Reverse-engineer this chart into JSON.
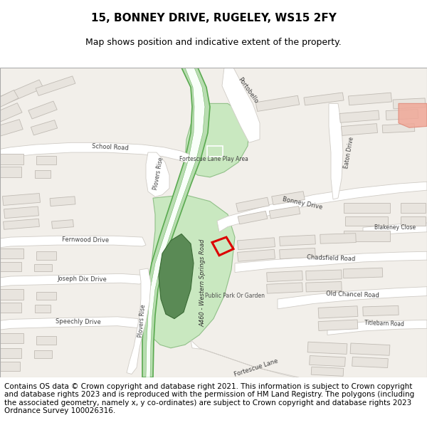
{
  "title": "15, BONNEY DRIVE, RUGELEY, WS15 2FY",
  "subtitle": "Map shows position and indicative extent of the property.",
  "footer": "Contains OS data © Crown copyright and database right 2021. This information is subject to Crown copyright and database rights 2023 and is reproduced with the permission of HM Land Registry. The polygons (including the associated geometry, namely x, y co-ordinates) are subject to Crown copyright and database rights 2023 Ordnance Survey 100026316.",
  "map_bg": "#f2efea",
  "building_fill": "#e8e4de",
  "building_outline": "#c0bbb4",
  "road_fill": "#ffffff",
  "road_outline": "#d0ccc6",
  "green_light": "#c5e8bc",
  "green_dark": "#5a8a55",
  "green_road_fill": "#b8ddb0",
  "green_road_outline": "#5aaa50",
  "salmon_fill": "#f0a898",
  "red_outline": "#dd0000",
  "white_rect": "#ffffff",
  "title_fontsize": 11,
  "subtitle_fontsize": 9,
  "footer_fontsize": 7.5
}
